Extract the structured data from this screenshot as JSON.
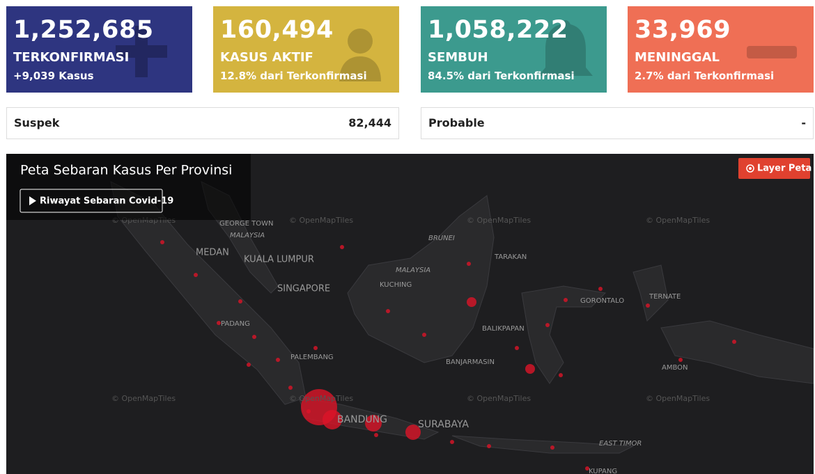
{
  "cards": [
    {
      "value": "1,252,685",
      "label": "TERKONFIRMASI",
      "sub": "+9,039 Kasus"
    },
    {
      "value": "160,494",
      "label": "KASUS AKTIF",
      "sub": "12.8% dari Terkonfirmasi"
    },
    {
      "value": "1,058,222",
      "label": "SEMBUH",
      "sub": "84.5% dari Terkonfirmasi"
    },
    {
      "value": "33,969",
      "label": "MENINGGAL",
      "sub": "2.7% dari Terkonfirmasi"
    }
  ],
  "stats": [
    {
      "label": "Suspek",
      "value": "82,444"
    },
    {
      "label": "Probable",
      "value": "-"
    }
  ],
  "map": {
    "title": "Peta Sebaran Kasus Per Provinsi",
    "history_button": "Riwayat Sebaran Covid-19",
    "layer_button": "Layer Peta",
    "attribution": "© OpenMapTiles",
    "places": [
      "GEORGE TOWN",
      "MALAYSIA",
      "MEDAN",
      "KUALA LUMPUR",
      "SINGAPORE",
      "BRUNEI",
      "TARAKAN",
      "MALAYSIA",
      "KUCHING",
      "GORONTALO",
      "TERNATE",
      "BALIKPAPAN",
      "PADANG",
      "PALEMBANG",
      "BANJARMASIN",
      "AMBON",
      "BANDUNG",
      "SURABAYA",
      "EAST TIMOR",
      "KUPANG"
    ]
  }
}
